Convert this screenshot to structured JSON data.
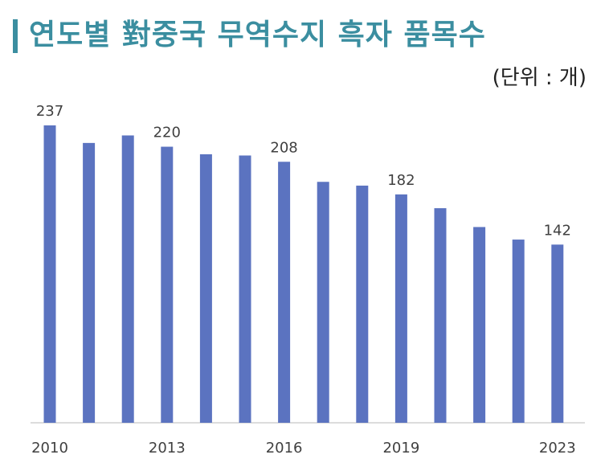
{
  "title": "연도별 對중국 무역수지 흑자 품목수",
  "unit_label": "(단위 : 개)",
  "colors": {
    "bar": "#5b73c0",
    "title": "#3b8ea0"
  },
  "chart_data": {
    "type": "bar",
    "categories": [
      "2010",
      "2011",
      "2012",
      "2013",
      "2014",
      "2015",
      "2016",
      "2017",
      "2018",
      "2019",
      "2020",
      "2021",
      "2022",
      "2023"
    ],
    "values": [
      237,
      223,
      229,
      220,
      214,
      213,
      208,
      192,
      189,
      182,
      171,
      156,
      146,
      142
    ],
    "visible_tick_labels": [
      "2010",
      "2013",
      "2016",
      "2019",
      "2023"
    ],
    "labeled_points": [
      "2010",
      "2013",
      "2016",
      "2019",
      "2023"
    ],
    "ylim": [
      0,
      237
    ],
    "grid": false,
    "legend": "none"
  }
}
